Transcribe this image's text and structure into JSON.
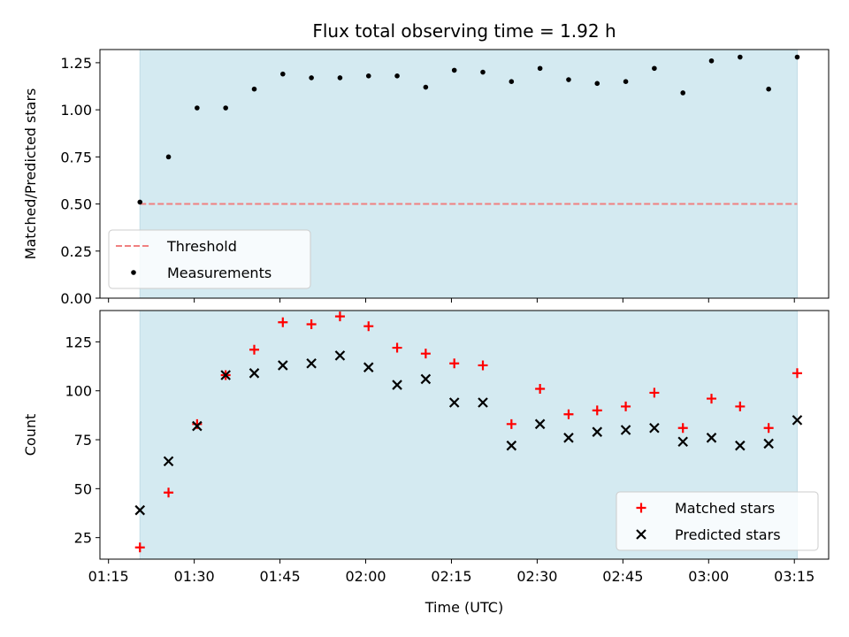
{
  "chart_data": {
    "type": "scatter",
    "title": "Flux total observing time = 1.92 h",
    "xlabel": "Time (UTC)",
    "x_ticks": [
      "01:15",
      "01:30",
      "01:45",
      "02:00",
      "02:15",
      "02:30",
      "02:45",
      "03:00",
      "03:15"
    ],
    "x_range_minutes": [
      73.5,
      201.0
    ],
    "x_minutes": [
      80.5,
      85.5,
      90.5,
      95.5,
      100.5,
      105.5,
      110.5,
      115.5,
      120.5,
      125.5,
      130.5,
      135.5,
      140.5,
      145.5,
      150.5,
      155.5,
      160.5,
      165.5,
      170.5,
      175.5,
      180.5,
      185.5,
      190.5,
      195.5
    ],
    "shaded_span_minutes": [
      80.5,
      195.5
    ],
    "shade_color": "#d4eaf1",
    "panels": [
      {
        "ylabel": "Matched/Predicted stars",
        "ylim": [
          0.0,
          1.32
        ],
        "y_ticks": [
          "0.00",
          "0.25",
          "0.50",
          "0.75",
          "1.00",
          "1.25"
        ],
        "threshold": 0.5,
        "threshold_color": "#f08080",
        "legend_position": "lower-left",
        "legend": [
          "Threshold",
          "Measurements"
        ],
        "series": [
          {
            "name": "Measurements",
            "color": "#000000",
            "marker": "dot",
            "values": [
              0.51,
              0.75,
              1.01,
              1.01,
              1.11,
              1.19,
              1.17,
              1.17,
              1.18,
              1.18,
              1.12,
              1.21,
              1.2,
              1.15,
              1.22,
              1.16,
              1.14,
              1.15,
              1.22,
              1.09,
              1.26,
              1.28,
              1.11,
              1.28
            ]
          }
        ]
      },
      {
        "ylabel": "Count",
        "ylim": [
          14,
          141
        ],
        "y_ticks": [
          "25",
          "50",
          "75",
          "100",
          "125"
        ],
        "legend_position": "lower-right",
        "legend": [
          "Matched stars",
          "Predicted stars"
        ],
        "series": [
          {
            "name": "Matched stars",
            "color": "#ff0000",
            "marker": "plus",
            "values": [
              20,
              48,
              83,
              108,
              121,
              135,
              134,
              138,
              133,
              122,
              119,
              114,
              113,
              83,
              101,
              88,
              90,
              92,
              99,
              81,
              96,
              92,
              81,
              109
            ]
          },
          {
            "name": "Predicted stars",
            "color": "#000000",
            "marker": "x",
            "values": [
              39,
              64,
              82,
              108,
              109,
              113,
              114,
              118,
              112,
              103,
              106,
              94,
              94,
              72,
              83,
              76,
              79,
              80,
              81,
              74,
              76,
              72,
              73,
              85
            ]
          }
        ]
      }
    ]
  }
}
